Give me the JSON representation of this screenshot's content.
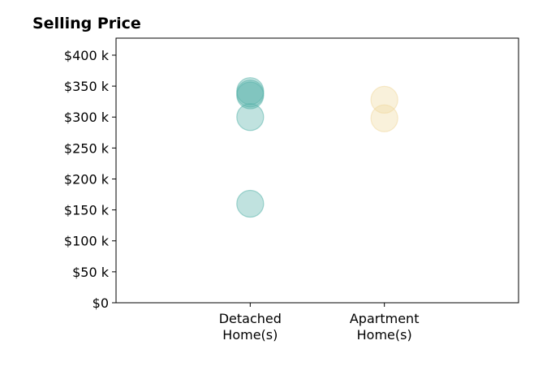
{
  "chart_data": {
    "type": "scatter",
    "title": "Selling Price",
    "xlabel": "",
    "ylabel": "",
    "categories": [
      [
        "Detached",
        "Home(s)"
      ],
      [
        "Apartment",
        "Home(s)"
      ]
    ],
    "xlim": [
      -1,
      2
    ],
    "ylim": [
      0,
      427500
    ],
    "yticks": [
      0,
      50000,
      100000,
      150000,
      200000,
      250000,
      300000,
      350000,
      400000
    ],
    "ytick_labels": [
      "$0",
      "$50 k",
      "$100 k",
      "$150 k",
      "$200 k",
      "$250 k",
      "$300 k",
      "$350 k",
      "$400 k"
    ],
    "grid": false,
    "series": [
      {
        "category": "Detached Home(s)",
        "color": "#5ab4ac",
        "values": [
          160000,
          300000,
          335000,
          338000,
          342000
        ]
      },
      {
        "category": "Apartment Home(s)",
        "color": "#f0d9a0",
        "values": [
          298000,
          328000
        ]
      }
    ]
  }
}
